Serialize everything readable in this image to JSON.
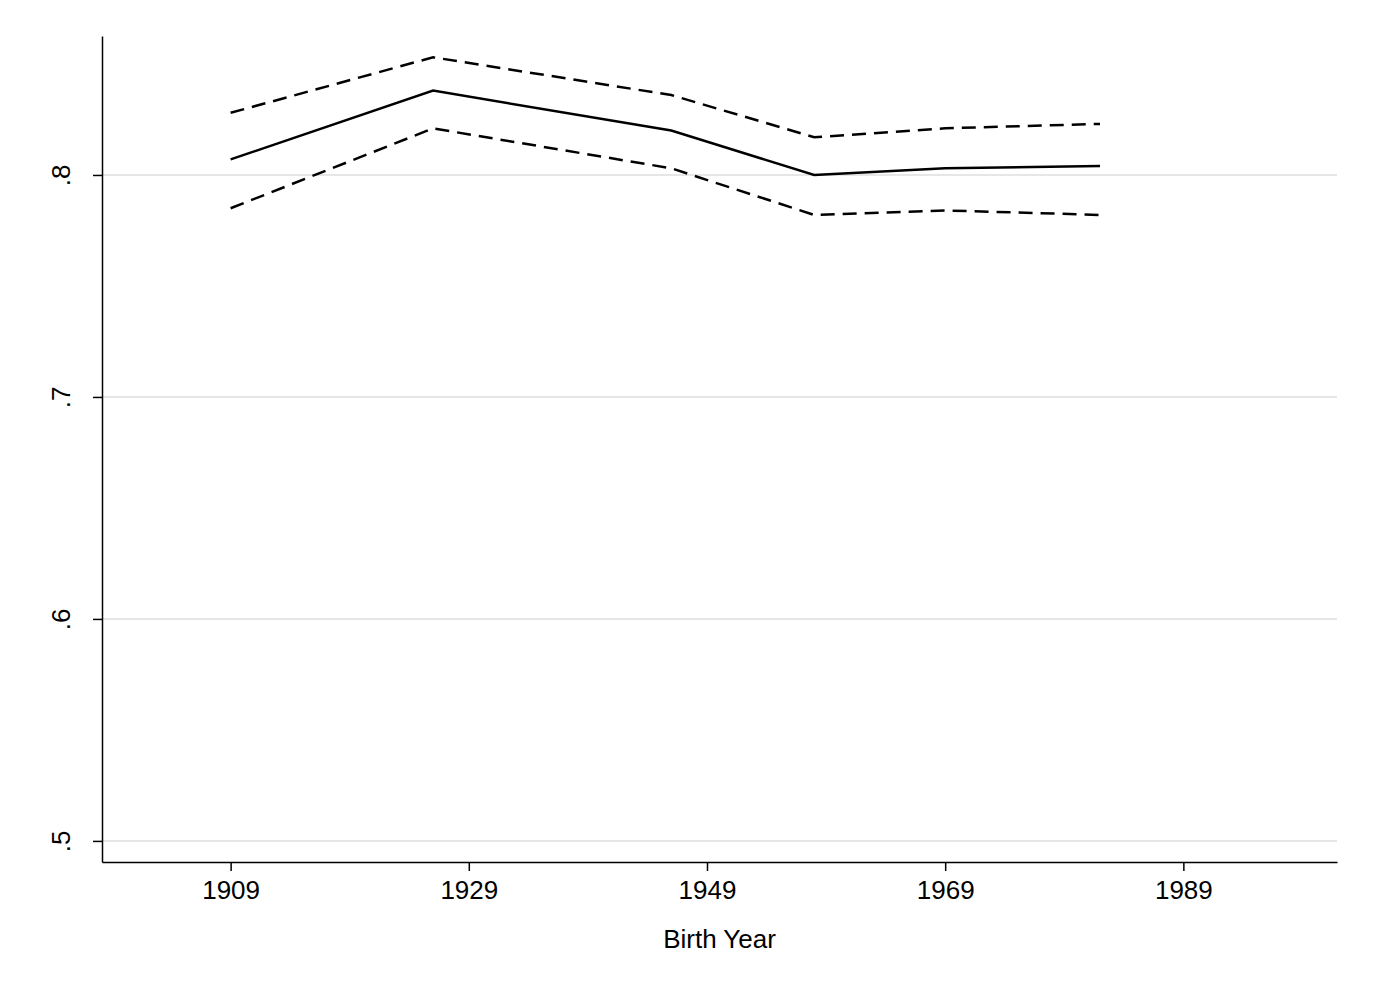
{
  "chart_data": {
    "type": "line",
    "x_label": "Birth Year",
    "x": [
      1909,
      1926,
      1946,
      1958,
      1969,
      1982
    ],
    "series": [
      {
        "color": "#000000",
        "line_style": "dashed",
        "values": [
          0.828,
          0.853,
          0.836,
          0.817,
          0.821,
          0.823
        ]
      },
      {
        "color": "#000000",
        "line_style": "solid",
        "values": [
          0.807,
          0.838,
          0.82,
          0.8,
          0.803,
          0.804
        ]
      },
      {
        "color": "#000000",
        "line_style": "dashed",
        "values": [
          0.785,
          0.821,
          0.803,
          0.782,
          0.784,
          0.782
        ]
      }
    ],
    "xlim": [
      1898.2,
      2001.9
    ],
    "xticks": [
      1909,
      1929,
      1949,
      1969,
      1989
    ],
    "ylim": [
      0.4905,
      0.8626
    ],
    "yticks": [
      {
        "value": 0.5,
        "label": ".5"
      },
      {
        "value": 0.6,
        "label": ".6"
      },
      {
        "value": 0.7,
        "label": ".7"
      },
      {
        "value": 0.8,
        "label": ".8"
      }
    ],
    "grid": true
  }
}
